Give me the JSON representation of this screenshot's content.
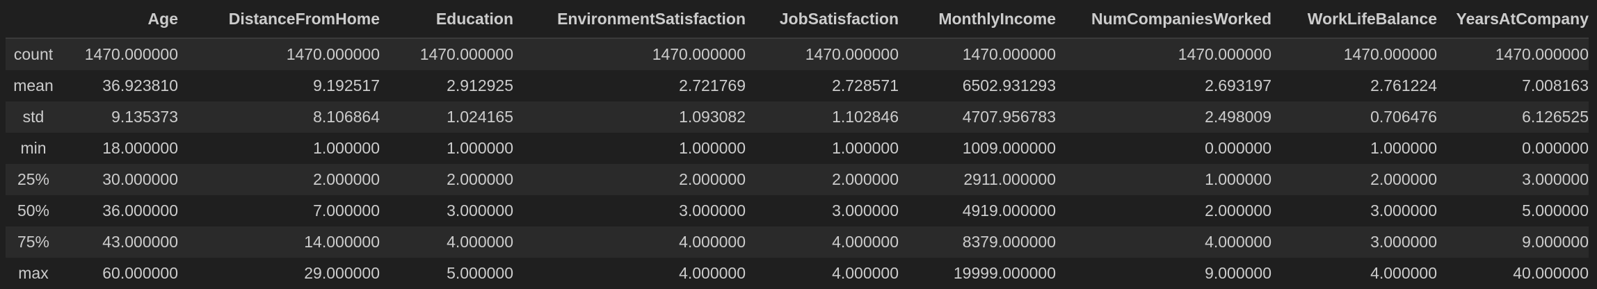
{
  "table": {
    "columns": [
      "",
      "Age",
      "DistanceFromHome",
      "Education",
      "EnvironmentSatisfaction",
      "JobSatisfaction",
      "MonthlyIncome",
      "NumCompaniesWorked",
      "WorkLifeBalance",
      "YearsAtCompany"
    ],
    "rows": [
      {
        "label": "count",
        "values": [
          "1470.000000",
          "1470.000000",
          "1470.000000",
          "1470.000000",
          "1470.000000",
          "1470.000000",
          "1470.000000",
          "1470.000000",
          "1470.000000"
        ]
      },
      {
        "label": "mean",
        "values": [
          "36.923810",
          "9.192517",
          "2.912925",
          "2.721769",
          "2.728571",
          "6502.931293",
          "2.693197",
          "2.761224",
          "7.008163"
        ]
      },
      {
        "label": "std",
        "values": [
          "9.135373",
          "8.106864",
          "1.024165",
          "1.093082",
          "1.102846",
          "4707.956783",
          "2.498009",
          "0.706476",
          "6.126525"
        ]
      },
      {
        "label": "min",
        "values": [
          "18.000000",
          "1.000000",
          "1.000000",
          "1.000000",
          "1.000000",
          "1009.000000",
          "0.000000",
          "1.000000",
          "0.000000"
        ]
      },
      {
        "label": "25%",
        "values": [
          "30.000000",
          "2.000000",
          "2.000000",
          "2.000000",
          "2.000000",
          "2911.000000",
          "1.000000",
          "2.000000",
          "3.000000"
        ]
      },
      {
        "label": "50%",
        "values": [
          "36.000000",
          "7.000000",
          "3.000000",
          "3.000000",
          "3.000000",
          "4919.000000",
          "2.000000",
          "3.000000",
          "5.000000"
        ]
      },
      {
        "label": "75%",
        "values": [
          "43.000000",
          "14.000000",
          "4.000000",
          "4.000000",
          "4.000000",
          "8379.000000",
          "4.000000",
          "3.000000",
          "9.000000"
        ]
      },
      {
        "label": "max",
        "values": [
          "60.000000",
          "29.000000",
          "5.000000",
          "4.000000",
          "4.000000",
          "19999.000000",
          "9.000000",
          "4.000000",
          "40.000000"
        ]
      }
    ]
  },
  "colors": {
    "background": "#1f1f1f",
    "row_stripe": "#2a2a2a",
    "text": "#cccccc"
  }
}
